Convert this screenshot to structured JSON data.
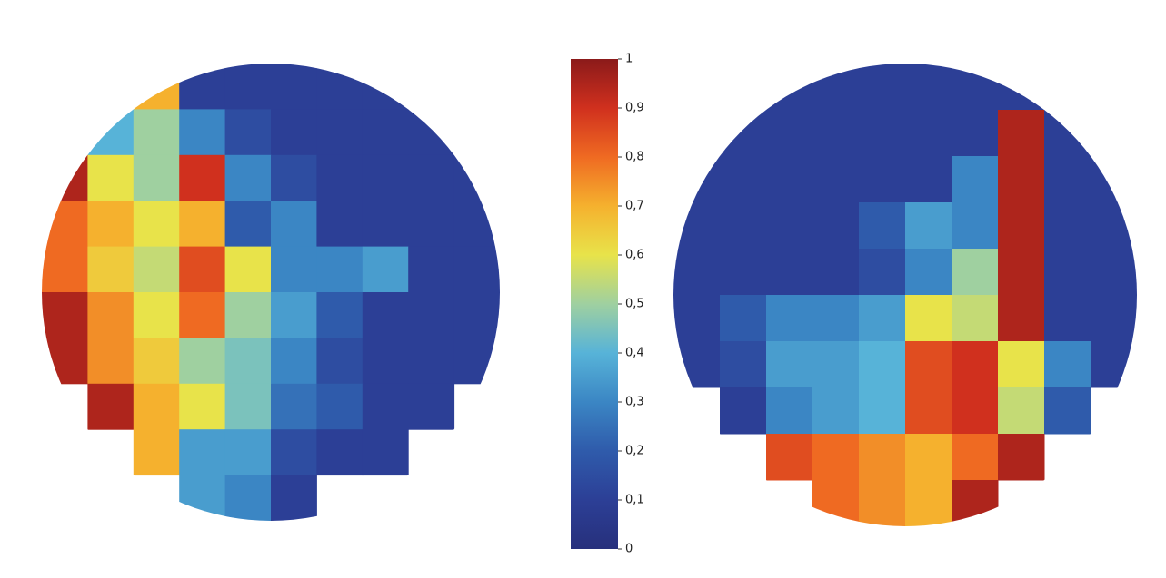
{
  "chart_data": {
    "type": "heatmap",
    "colormap": [
      "#27307c",
      "#2c3f96",
      "#2f5bab",
      "#3b86c4",
      "#57b3d8",
      "#9fd0a0",
      "#e8e34a",
      "#f5b12e",
      "#ef6a22",
      "#d0301e",
      "#8b1a1a"
    ],
    "zlim": [
      0,
      1
    ],
    "zticks": [
      0,
      {
        "value": 0.1,
        "label": "0,1"
      },
      {
        "value": 0.2,
        "label": "0,2"
      },
      {
        "value": 0.3,
        "label": "0,3"
      },
      {
        "value": 0.4,
        "label": "0,4"
      },
      {
        "value": 0.5,
        "label": "0,5"
      },
      {
        "value": 0.6,
        "label": "0,6"
      },
      {
        "value": 0.7,
        "label": "0,7"
      },
      {
        "value": 0.8,
        "label": "0,8"
      },
      {
        "value": 0.9,
        "label": "0,9"
      },
      1
    ],
    "panels": [
      {
        "values": [
          [
            null,
            null,
            0.7,
            0.1,
            0.1,
            0.1,
            0.1,
            0.1,
            null,
            null
          ],
          [
            null,
            0.4,
            0.5,
            0.3,
            0.15,
            0.1,
            0.1,
            0.1,
            0.1,
            null
          ],
          [
            0.95,
            0.6,
            0.5,
            0.9,
            0.3,
            0.15,
            0.1,
            0.1,
            0.1,
            0.1
          ],
          [
            0.8,
            0.7,
            0.6,
            0.7,
            0.2,
            0.3,
            0.1,
            0.1,
            0.1,
            0.1
          ],
          [
            0.8,
            0.65,
            0.55,
            0.85,
            0.6,
            0.3,
            0.3,
            0.35,
            0.1,
            0.1
          ],
          [
            0.95,
            0.75,
            0.6,
            0.8,
            0.5,
            0.35,
            0.2,
            0.1,
            0.1,
            0.1
          ],
          [
            0.95,
            0.75,
            0.65,
            0.5,
            0.45,
            0.3,
            0.15,
            0.1,
            0.1,
            0.1
          ],
          [
            null,
            0.95,
            0.7,
            0.6,
            0.45,
            0.25,
            0.2,
            0.1,
            0.1,
            null
          ],
          [
            null,
            null,
            0.7,
            0.35,
            0.35,
            0.15,
            0.1,
            0.1,
            null,
            null
          ],
          [
            null,
            null,
            null,
            0.35,
            0.3,
            0.1,
            null,
            null,
            null,
            null
          ]
        ]
      },
      {
        "values": [
          [
            null,
            null,
            0.1,
            0.1,
            0.1,
            0.1,
            0.1,
            0.1,
            null,
            null
          ],
          [
            null,
            0.1,
            0.1,
            0.1,
            0.1,
            0.1,
            0.1,
            0.95,
            0.1,
            null
          ],
          [
            0.1,
            0.1,
            0.1,
            0.1,
            0.1,
            0.1,
            0.3,
            0.95,
            0.1,
            0.1
          ],
          [
            0.1,
            0.1,
            0.1,
            0.1,
            0.2,
            0.35,
            0.3,
            0.95,
            0.1,
            0.1
          ],
          [
            0.1,
            0.1,
            0.1,
            0.1,
            0.15,
            0.3,
            0.5,
            0.95,
            0.1,
            0.1
          ],
          [
            0.1,
            0.2,
            0.3,
            0.3,
            0.35,
            0.6,
            0.55,
            0.95,
            0.1,
            0.1
          ],
          [
            0.1,
            0.15,
            0.35,
            0.35,
            0.4,
            0.85,
            0.9,
            0.6,
            0.3,
            0.1
          ],
          [
            null,
            0.1,
            0.3,
            0.35,
            0.4,
            0.85,
            0.9,
            0.55,
            0.2,
            null
          ],
          [
            null,
            null,
            0.85,
            0.8,
            0.75,
            0.7,
            0.8,
            0.95,
            null,
            null
          ],
          [
            null,
            null,
            null,
            0.8,
            0.75,
            0.7,
            0.95,
            null,
            null,
            null
          ]
        ]
      }
    ]
  }
}
